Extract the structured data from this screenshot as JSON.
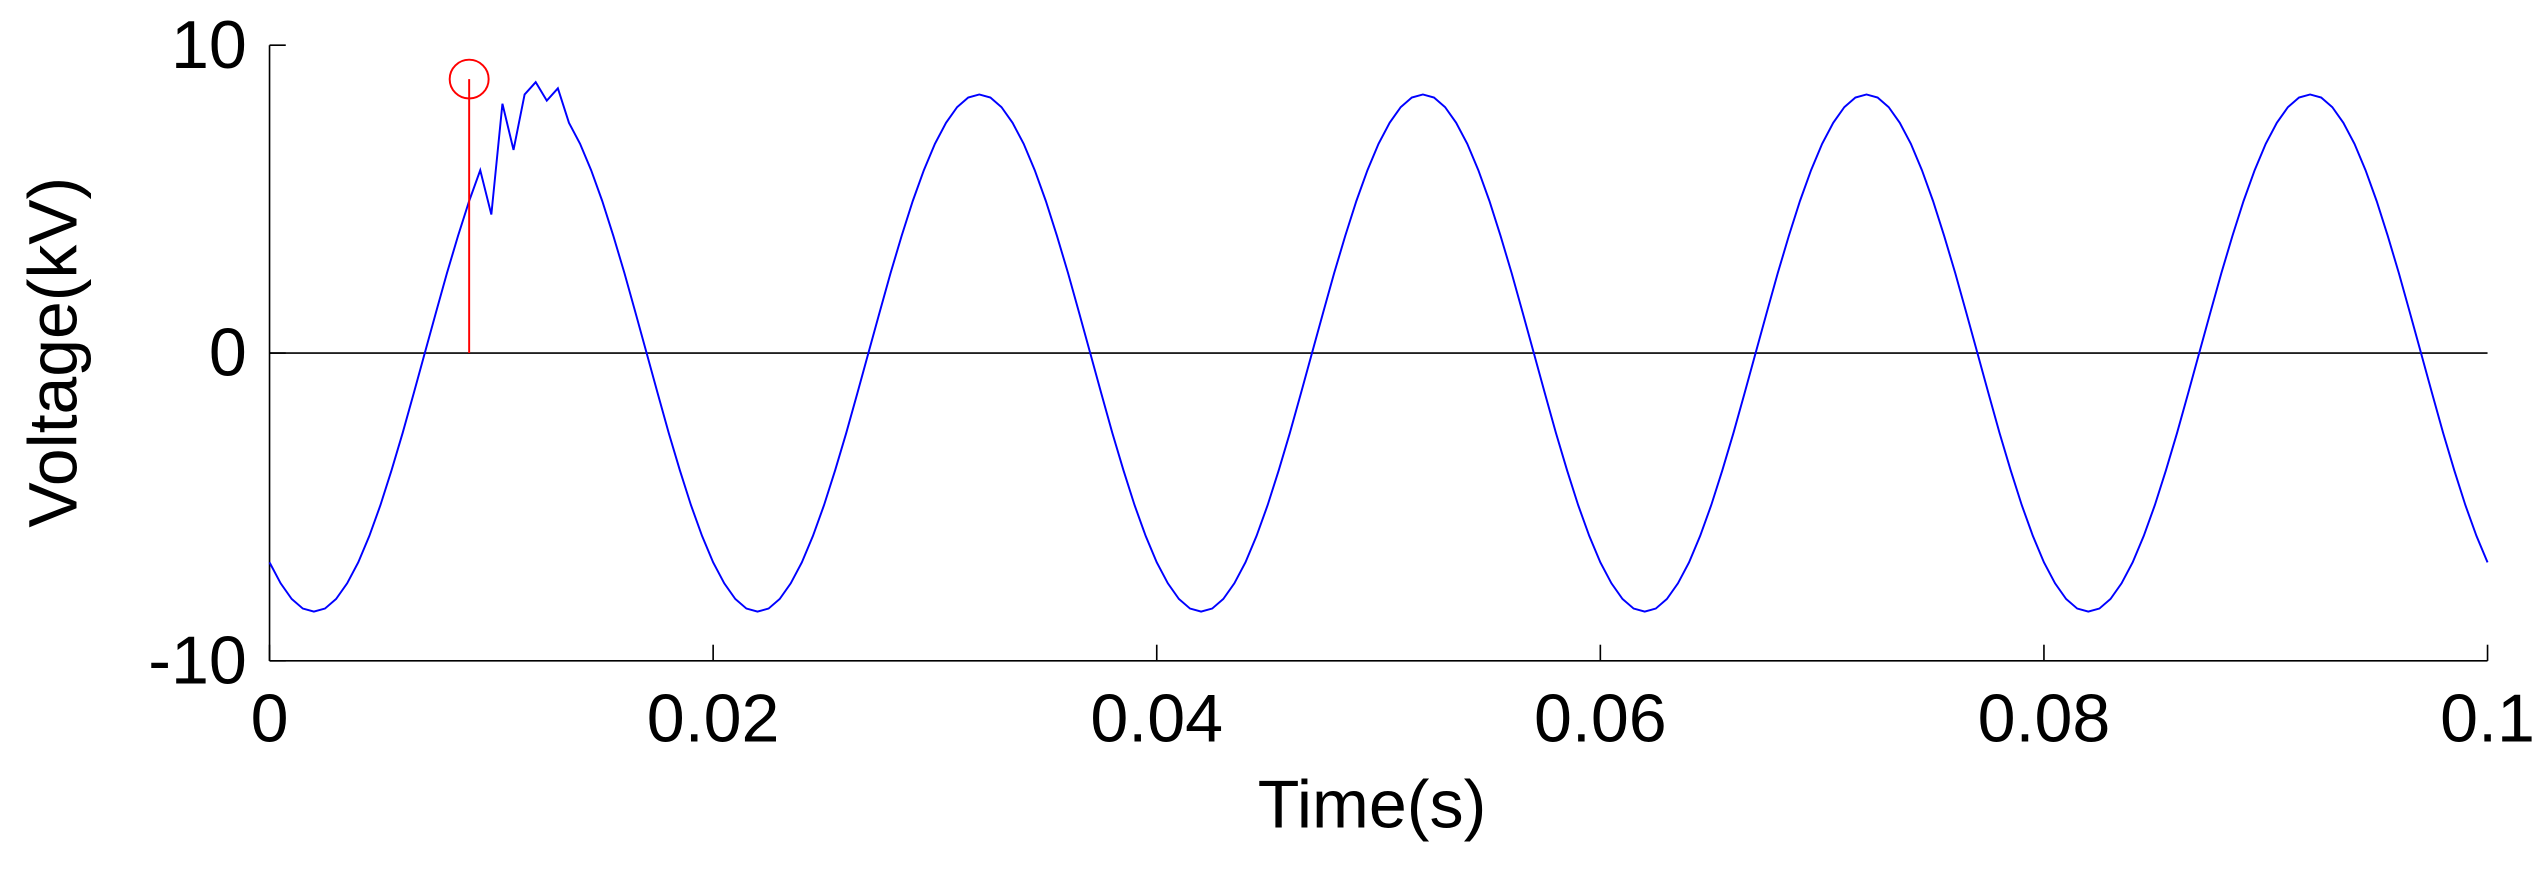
{
  "chart_data": {
    "type": "line",
    "xlabel": "Time(s)",
    "ylabel": "Voltage(kV)",
    "xlim": [
      0,
      0.1
    ],
    "ylim": [
      -10,
      10
    ],
    "xticks": [
      0,
      0.02,
      0.04,
      0.06,
      0.08,
      0.1
    ],
    "yticks": [
      -10,
      0,
      10
    ],
    "zero_line": true,
    "x": [
      0,
      0.0005,
      0.001,
      0.0015,
      0.002,
      0.0025,
      0.003,
      0.0035,
      0.004,
      0.0045,
      0.005,
      0.0055,
      0.006,
      0.0065,
      0.007,
      0.0075,
      0.008,
      0.0085,
      0.009,
      0.0095,
      0.01,
      0.0105,
      0.011,
      0.0115,
      0.012,
      0.0125,
      0.013,
      0.0135,
      0.014,
      0.0145,
      0.015,
      0.0155,
      0.016,
      0.0165,
      0.017,
      0.0175,
      0.018,
      0.0185,
      0.019,
      0.0195,
      0.02,
      0.0205,
      0.021,
      0.0215,
      0.022,
      0.0225,
      0.023,
      0.0235,
      0.024,
      0.0245,
      0.025,
      0.0255,
      0.026,
      0.0265,
      0.027,
      0.0275,
      0.028,
      0.0285,
      0.029,
      0.0295,
      0.03,
      0.0305,
      0.031,
      0.0315,
      0.032,
      0.0325,
      0.033,
      0.0335,
      0.034,
      0.0345,
      0.035,
      0.0355,
      0.036,
      0.0365,
      0.037,
      0.0375,
      0.038,
      0.0385,
      0.039,
      0.0395,
      0.04,
      0.0405,
      0.041,
      0.0415,
      0.042,
      0.0425,
      0.043,
      0.0435,
      0.044,
      0.0445,
      0.045,
      0.0455,
      0.046,
      0.0465,
      0.047,
      0.0475,
      0.048,
      0.0485,
      0.049,
      0.0495,
      0.05,
      0.0505,
      0.051,
      0.0515,
      0.052,
      0.0525,
      0.053,
      0.0535,
      0.054,
      0.0545,
      0.055,
      0.0555,
      0.056,
      0.0565,
      0.057,
      0.0575,
      0.058,
      0.0585,
      0.059,
      0.0595,
      0.06,
      0.0605,
      0.061,
      0.0615,
      0.062,
      0.0625,
      0.063,
      0.0635,
      0.064,
      0.0645,
      0.065,
      0.0655,
      0.066,
      0.0665,
      0.067,
      0.0675,
      0.068,
      0.0685,
      0.069,
      0.0695,
      0.07,
      0.0705,
      0.071,
      0.0715,
      0.072,
      0.0725,
      0.073,
      0.0735,
      0.074,
      0.0745,
      0.075,
      0.0755,
      0.076,
      0.0765,
      0.077,
      0.0775,
      0.078,
      0.0785,
      0.079,
      0.0795,
      0.08,
      0.0805,
      0.081,
      0.0815,
      0.082,
      0.0825,
      0.083,
      0.0835,
      0.084,
      0.0845,
      0.085,
      0.0855,
      0.086,
      0.0865,
      0.087,
      0.0875,
      0.088,
      0.0885,
      0.089,
      0.0895,
      0.09,
      0.0905,
      0.091,
      0.0915,
      0.092,
      0.0925,
      0.093,
      0.0935,
      0.094,
      0.0945,
      0.095,
      0.0955,
      0.096,
      0.0965,
      0.097,
      0.0975,
      0.098,
      0.0985,
      0.099,
      0.0995,
      0.1
    ],
    "series": [
      {
        "color": "#0000ff",
        "values": [
          -6.8,
          -7.48,
          -7.99,
          -8.3,
          -8.4,
          -8.3,
          -7.99,
          -7.48,
          -6.8,
          -5.94,
          -4.94,
          -3.81,
          -2.6,
          -1.31,
          0,
          1.31,
          2.6,
          3.81,
          4.94,
          5.94,
          4.5,
          8.1,
          6.6,
          8.4,
          8.8,
          8.2,
          8.6,
          7.48,
          6.8,
          5.94,
          4.94,
          3.81,
          2.6,
          1.31,
          0,
          -1.31,
          -2.6,
          -3.81,
          -4.94,
          -5.94,
          -6.8,
          -7.48,
          -7.99,
          -8.3,
          -8.4,
          -8.3,
          -7.99,
          -7.48,
          -6.8,
          -5.94,
          -4.94,
          -3.81,
          -2.6,
          -1.31,
          0,
          1.31,
          2.6,
          3.81,
          4.94,
          5.94,
          6.8,
          7.48,
          7.99,
          8.3,
          8.4,
          8.3,
          7.99,
          7.48,
          6.8,
          5.94,
          4.94,
          3.81,
          2.6,
          1.31,
          0,
          -1.31,
          -2.6,
          -3.81,
          -4.94,
          -5.94,
          -6.8,
          -7.48,
          -7.99,
          -8.3,
          -8.4,
          -8.3,
          -7.99,
          -7.48,
          -6.8,
          -5.94,
          -4.94,
          -3.81,
          -2.6,
          -1.31,
          0,
          1.31,
          2.6,
          3.81,
          4.94,
          5.94,
          6.8,
          7.48,
          7.99,
          8.3,
          8.4,
          8.3,
          7.99,
          7.48,
          6.8,
          5.94,
          4.94,
          3.81,
          2.6,
          1.31,
          0,
          -1.31,
          -2.6,
          -3.81,
          -4.94,
          -5.94,
          -6.8,
          -7.48,
          -7.99,
          -8.3,
          -8.4,
          -8.3,
          -7.99,
          -7.48,
          -6.8,
          -5.94,
          -4.94,
          -3.81,
          -2.6,
          -1.31,
          0,
          1.31,
          2.6,
          3.81,
          4.94,
          5.94,
          6.8,
          7.48,
          7.99,
          8.3,
          8.4,
          8.3,
          7.99,
          7.48,
          6.8,
          5.94,
          4.94,
          3.81,
          2.6,
          1.31,
          0,
          -1.31,
          -2.6,
          -3.81,
          -4.94,
          -5.94,
          -6.8,
          -7.48,
          -7.99,
          -8.3,
          -8.4,
          -8.3,
          -7.99,
          -7.48,
          -6.8,
          -5.94,
          -4.94,
          -3.81,
          -2.6,
          -1.31,
          0,
          1.31,
          2.6,
          3.81,
          4.94,
          5.94,
          6.8,
          7.48,
          7.99,
          8.3,
          8.4,
          8.3,
          7.99,
          7.48,
          6.8,
          5.94,
          4.94,
          3.81,
          2.6,
          1.31,
          0,
          -1.31,
          -2.6,
          -3.81,
          -4.94,
          -5.94,
          -6.8
        ]
      }
    ],
    "marker": {
      "x": 0.009,
      "y": 8.9,
      "color": "#ff0000"
    }
  }
}
